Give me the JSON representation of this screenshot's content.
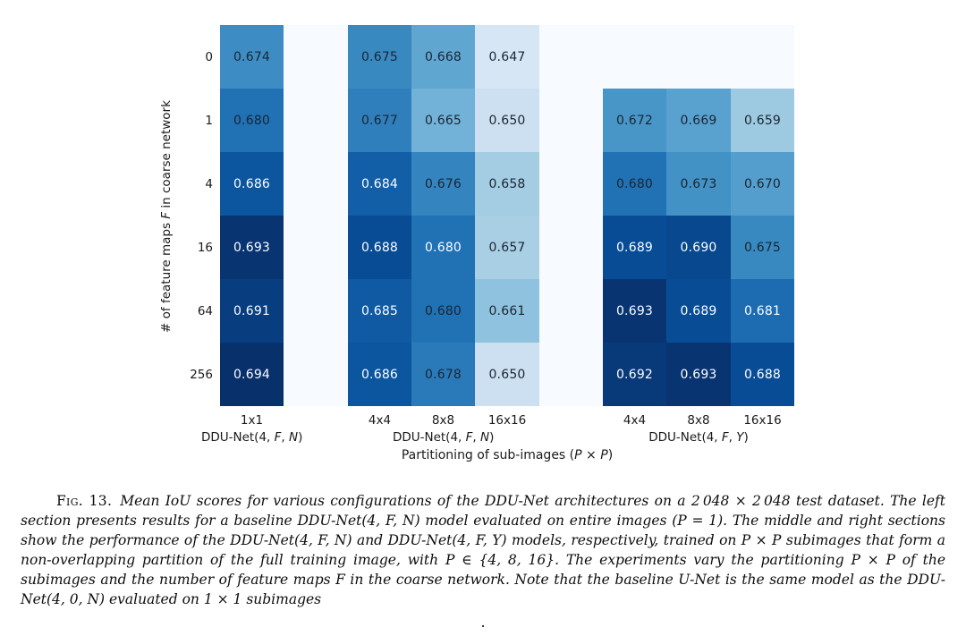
{
  "figure": {
    "background": "#ffffff",
    "plot_background": "#f7fbff"
  },
  "colors": {
    "cell_text_dark": "#1a2633",
    "cell_text_light": "#fbfdff",
    "axis_text": "#1a1a1a",
    "colormap_min": "#f7fbff",
    "colormap_max": "#08306b"
  },
  "chart_data": {
    "type": "heatmap",
    "colormap": "Blues",
    "value_min_shown": 0.647,
    "value_max_shown": 0.694,
    "xlabel": "Partitioning of sub-images (P × P)",
    "xlabel_parts": [
      {
        "t": "Partitioning of sub-images ("
      },
      {
        "t": "P",
        "i": true
      },
      {
        "t": " × "
      },
      {
        "t": "P",
        "i": true
      },
      {
        "t": ")"
      }
    ],
    "ylabel": "# of feature maps F in coarse network",
    "ylabel_parts": [
      {
        "t": "# of feature maps "
      },
      {
        "t": "F",
        "i": true
      },
      {
        "t": " in coarse network"
      }
    ],
    "rows": [
      "0",
      "1",
      "4",
      "16",
      "64",
      "256"
    ],
    "sections": [
      {
        "label": "DDU-Net(4, F, N)",
        "label_parts": [
          {
            "t": "DDU-Net(4, "
          },
          {
            "t": "F",
            "i": true
          },
          {
            "t": ", "
          },
          {
            "t": "N",
            "i": true
          },
          {
            "t": ")"
          }
        ],
        "cols": [
          "1x1"
        ],
        "grid_col_start": 0,
        "values": [
          [
            0.674
          ],
          [
            0.68
          ],
          [
            0.686
          ],
          [
            0.693
          ],
          [
            0.691
          ],
          [
            0.694
          ]
        ],
        "cell_colors": [
          [
            "#3d8dc4"
          ],
          [
            "#2171b5"
          ],
          [
            "#0c56a0"
          ],
          [
            "#083572"
          ],
          [
            "#083e80"
          ],
          [
            "#08306b"
          ]
        ],
        "text_colors": [
          [
            "d"
          ],
          [
            "d"
          ],
          [
            "w"
          ],
          [
            "w"
          ],
          [
            "w"
          ],
          [
            "w"
          ]
        ]
      },
      {
        "label": "DDU-Net(4, F, N)",
        "label_parts": [
          {
            "t": "DDU-Net(4, "
          },
          {
            "t": "F",
            "i": true
          },
          {
            "t": ", "
          },
          {
            "t": "N",
            "i": true
          },
          {
            "t": ")"
          }
        ],
        "cols": [
          "4x4",
          "8x8",
          "16x16"
        ],
        "grid_col_start": 2,
        "values": [
          [
            0.675,
            0.668,
            0.647
          ],
          [
            0.677,
            0.665,
            0.65
          ],
          [
            0.684,
            0.676,
            0.658
          ],
          [
            0.688,
            0.68,
            0.657
          ],
          [
            0.685,
            0.68,
            0.661
          ],
          [
            0.686,
            0.678,
            0.65
          ]
        ],
        "cell_colors": [
          [
            "#3989c1",
            "#5fa6d1",
            "#d7e6f5"
          ],
          [
            "#2f7fbc",
            "#72b2d8",
            "#cde0f1"
          ],
          [
            "#135fa7",
            "#3484bf",
            "#a4cce3"
          ],
          [
            "#084c95",
            "#2171b5",
            "#a9cfe5"
          ],
          [
            "#0f5aa3",
            "#2171b5",
            "#8fc2de"
          ],
          [
            "#0c56a0",
            "#2a7aba",
            "#cde0f1"
          ]
        ],
        "text_colors": [
          [
            "d",
            "d",
            "d"
          ],
          [
            "d",
            "d",
            "d"
          ],
          [
            "w",
            "d",
            "d"
          ],
          [
            "w",
            "w",
            "d"
          ],
          [
            "w",
            "d",
            "d"
          ],
          [
            "w",
            "d",
            "d"
          ]
        ]
      },
      {
        "label": "DDU-Net(4, F, Y)",
        "label_parts": [
          {
            "t": "DDU-Net(4, "
          },
          {
            "t": "F",
            "i": true
          },
          {
            "t": ", "
          },
          {
            "t": "Y",
            "i": true
          },
          {
            "t": ")"
          }
        ],
        "cols": [
          "4x4",
          "8x8",
          "16x16"
        ],
        "grid_col_start": 6,
        "values": [
          [
            null,
            null,
            null
          ],
          [
            0.672,
            0.669,
            0.659
          ],
          [
            0.68,
            0.673,
            0.67
          ],
          [
            0.689,
            0.69,
            0.675
          ],
          [
            0.693,
            0.689,
            0.681
          ],
          [
            0.692,
            0.693,
            0.688
          ]
        ],
        "cell_colors": [
          [
            null,
            null,
            null
          ],
          [
            "#4896c8",
            "#59a2cf",
            "#9ecae1"
          ],
          [
            "#2171b5",
            "#4292c6",
            "#549ecd"
          ],
          [
            "#084c95",
            "#08488e",
            "#3989c1"
          ],
          [
            "#083572",
            "#084c95",
            "#1d6cb1"
          ],
          [
            "#083979",
            "#083572",
            "#084c95"
          ]
        ],
        "text_colors": [
          [
            null,
            null,
            null
          ],
          [
            "d",
            "d",
            "d"
          ],
          [
            "d",
            "d",
            "d"
          ],
          [
            "w",
            "w",
            "d"
          ],
          [
            "w",
            "w",
            "w"
          ],
          [
            "w",
            "w",
            "w"
          ]
        ]
      }
    ]
  },
  "caption": {
    "label": "Fig. 13.",
    "text": "Mean IoU scores for various configurations of the DDU-Net architectures on a 2 048 × 2 048 test dataset. The left section presents results for a baseline DDU-Net(4, F, N) model evaluated on entire images (P = 1). The middle and right sections show the performance of the DDU-Net(4, F, N) and DDU-Net(4, F, Y) models, respectively, trained on P × P subimages that form a non-overlapping partition of the full training image, with P ∈ {4, 8, 16}. The experiments vary the partitioning P × P of the subimages and the number of feature maps F in the coarse network. Note that the baseline U-Net is the same model as the DDU-Net(4, 0, N) evaluated on 1 × 1 subimages",
    "trailing_period": "."
  }
}
